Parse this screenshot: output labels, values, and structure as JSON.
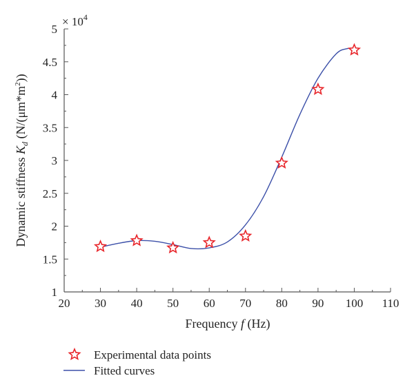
{
  "chart_data": {
    "type": "scatter",
    "multiplier_label": "× 10",
    "multiplier_exponent": "4",
    "xlabel": {
      "prefix": "Frequency ",
      "italic": "f",
      "suffix": " (Hz)"
    },
    "ylabel": {
      "prefix": "Dynamic stiffness ",
      "italic": "K",
      "sub": "d",
      "mid": " (N/(μm*m",
      "sup": "2",
      "suffix": "))"
    },
    "xlim": [
      20,
      110
    ],
    "ylim": [
      1,
      5
    ],
    "x_ticks": [
      "20",
      "30",
      "40",
      "50",
      "60",
      "70",
      "80",
      "90",
      "100",
      "110"
    ],
    "y_ticks": [
      "1",
      "1.5",
      "2",
      "2.5",
      "3",
      "3.5",
      "4",
      "4.5",
      "5"
    ],
    "x_tick_values": [
      20,
      30,
      40,
      50,
      60,
      70,
      80,
      90,
      100,
      110
    ],
    "y_tick_values": [
      1,
      1.5,
      2,
      2.5,
      3,
      3.5,
      4,
      4.5,
      5
    ],
    "series": [
      {
        "name": "Experimental data points",
        "kind": "scatter",
        "marker": "star",
        "color": "#e8262b",
        "x": [
          30,
          40,
          50,
          60,
          70,
          80,
          90,
          100
        ],
        "y": [
          1.69,
          1.78,
          1.67,
          1.75,
          1.85,
          2.96,
          4.08,
          4.68
        ]
      },
      {
        "name": "Fitted curves",
        "kind": "line",
        "color": "#3b4fa8",
        "x": [
          30,
          35,
          40,
          45,
          50,
          55,
          60,
          65,
          70,
          75,
          80,
          85,
          90,
          95,
          98,
          100
        ],
        "y": [
          1.68,
          1.74,
          1.78,
          1.77,
          1.72,
          1.66,
          1.67,
          1.76,
          2.02,
          2.45,
          3.05,
          3.7,
          4.25,
          4.62,
          4.7,
          4.7
        ]
      }
    ],
    "legend": {
      "placement": "bottom-left",
      "entries": [
        "Experimental data points",
        "Fitted curves"
      ]
    },
    "grid": false
  }
}
